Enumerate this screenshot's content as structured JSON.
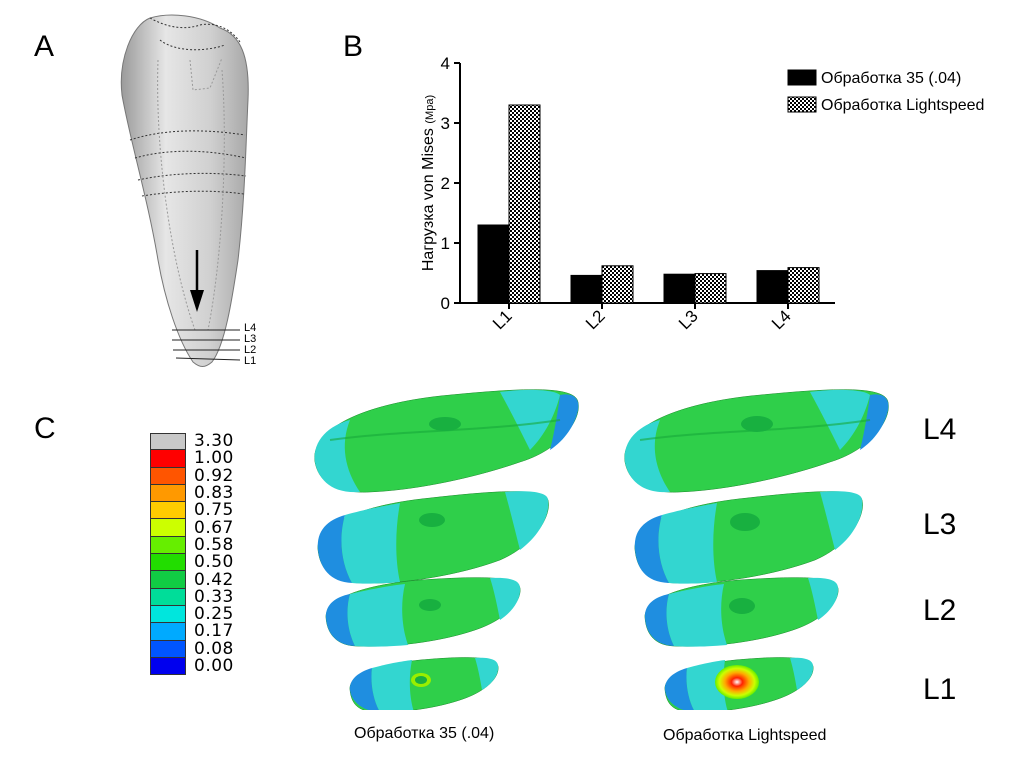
{
  "panels": {
    "a": "A",
    "b": "B",
    "c": "C"
  },
  "tooth": {
    "level_labels": [
      "L4",
      "L3",
      "L2",
      "L1"
    ]
  },
  "chart_data": {
    "type": "bar",
    "categories": [
      "L1",
      "L2",
      "L3",
      "L4"
    ],
    "series": [
      {
        "name": "Обработка 35 (.04)",
        "values": [
          1.3,
          0.46,
          0.48,
          0.54
        ],
        "color": "#000000",
        "pattern": "solid"
      },
      {
        "name": "Обработка Lightspeed",
        "values": [
          3.3,
          0.62,
          0.49,
          0.59
        ],
        "color": "#888888",
        "pattern": "checker"
      }
    ],
    "ylabel": "Нагрузка von Mises",
    "ylabel_unit": "(Mpa)",
    "ylim": [
      0,
      4
    ],
    "yticks": [
      "0",
      "1",
      "2",
      "3",
      "4"
    ],
    "grid": false,
    "legend_position": "top-right"
  },
  "color_scale": [
    {
      "label": "3.30",
      "color": "#c8c8c8"
    },
    {
      "label": "1.00",
      "color": "#ff0000"
    },
    {
      "label": "0.92",
      "color": "#ff5500"
    },
    {
      "label": "0.83",
      "color": "#ff9900"
    },
    {
      "label": "0.75",
      "color": "#ffcc00"
    },
    {
      "label": "0.67",
      "color": "#ccff00"
    },
    {
      "label": "0.58",
      "color": "#66ee00"
    },
    {
      "label": "0.50",
      "color": "#22dd00"
    },
    {
      "label": "0.42",
      "color": "#11cc44"
    },
    {
      "label": "0.33",
      "color": "#00dd99"
    },
    {
      "label": "0.25",
      "color": "#00e6dd"
    },
    {
      "label": "0.17",
      "color": "#00aaff"
    },
    {
      "label": "0.08",
      "color": "#0055ff"
    },
    {
      "label": "0.00",
      "color": "#0000ee"
    }
  ],
  "slice_labels": [
    "L4",
    "L3",
    "L2",
    "L1"
  ],
  "captions": {
    "left": "Обработка 35 (.04)",
    "right": "Обработка Lightspeed"
  }
}
